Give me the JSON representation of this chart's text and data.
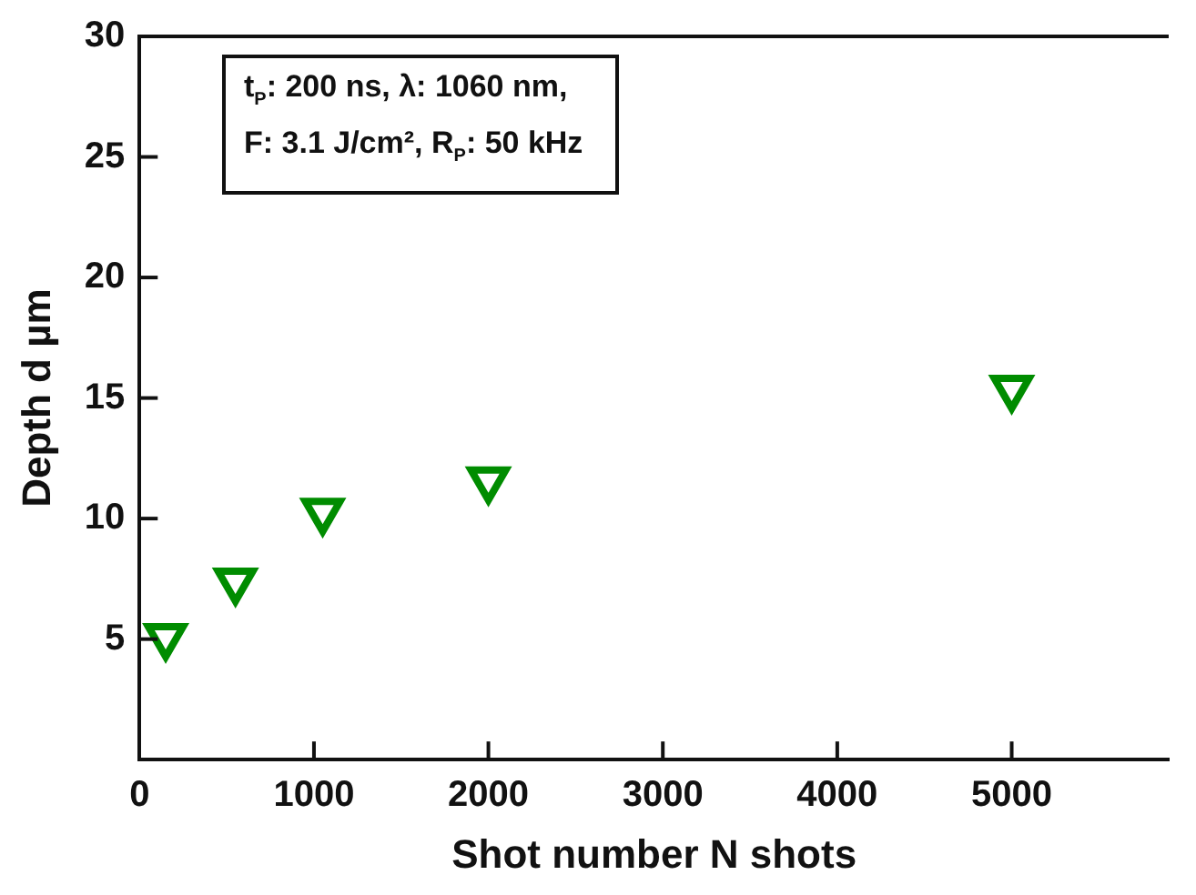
{
  "chart_data": {
    "type": "scatter",
    "xlabel": "Shot number N shots",
    "ylabel": "Depth d µm",
    "annotations": [
      "t$_{P}$: 200 ns, λ: 1060 nm,",
      "F: 3.1 J/cm², R$_{P}$: 50 kHz"
    ],
    "x": [
      150,
      550,
      1050,
      2000,
      5000
    ],
    "series": [
      {
        "color": "#008c00",
        "values": [
          5.1,
          7.4,
          10.3,
          11.6,
          15.4
        ]
      }
    ],
    "xlim": [
      0,
      5900
    ],
    "xticks": [
      0,
      1000,
      2000,
      3000,
      4000,
      5000
    ],
    "ylim": [
      0,
      30
    ],
    "yticks": [
      5,
      10,
      15,
      20,
      25,
      30
    ],
    "grid": false,
    "legend": false,
    "marker": "triangle"
  }
}
